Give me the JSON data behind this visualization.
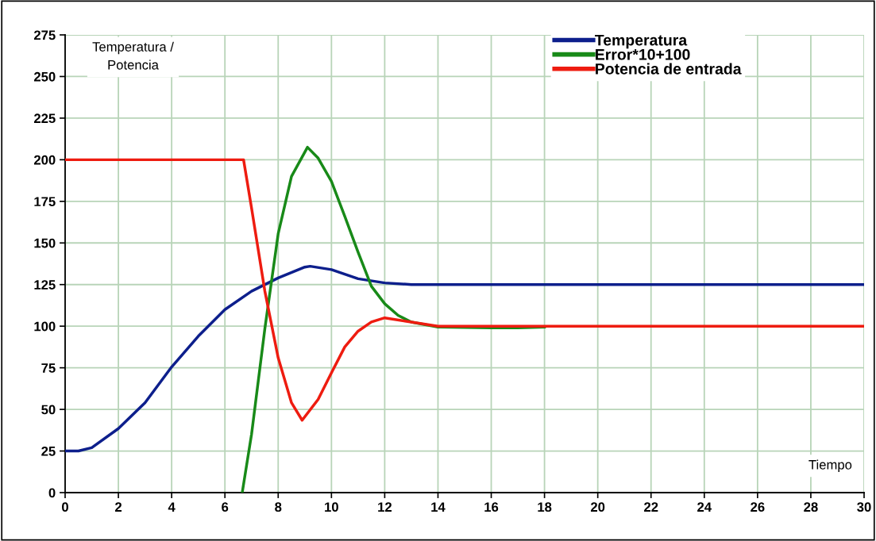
{
  "chart_data": {
    "type": "line",
    "xlabel": "Tiempo",
    "ylabel": "Temperatura /\nPotencia",
    "xlim": [
      0,
      30
    ],
    "ylim": [
      0,
      275
    ],
    "xticks": [
      0,
      2,
      4,
      6,
      8,
      10,
      12,
      14,
      16,
      18,
      20,
      22,
      24,
      26,
      28,
      30
    ],
    "yticks": [
      0,
      25,
      50,
      75,
      100,
      125,
      150,
      175,
      200,
      225,
      250,
      275
    ],
    "grid": true,
    "legend": "top right",
    "marker": "none",
    "line_style": "solid",
    "series": [
      {
        "name": "Temperatura",
        "color": "#0d1f8c",
        "x": [
          0,
          0.5,
          1,
          2,
          3,
          4,
          5,
          6,
          7,
          8,
          9,
          9.2,
          10,
          11,
          12,
          13,
          14,
          30
        ],
        "values": [
          25,
          25,
          27,
          38.5,
          54,
          75.5,
          94,
          110,
          121,
          129,
          135.5,
          136,
          134,
          128.5,
          126,
          125,
          125,
          125
        ]
      },
      {
        "name": "Error*10+100",
        "color": "#188a18",
        "x": [
          6.65,
          7,
          7.5,
          8,
          8.5,
          9.1,
          9.5,
          10,
          10.5,
          11,
          11.5,
          12,
          12.5,
          13,
          14,
          16,
          17,
          18
        ],
        "values": [
          0,
          35,
          98.5,
          155.5,
          190,
          207.5,
          201,
          187,
          166,
          144.5,
          124,
          113.5,
          106.5,
          102.5,
          99.5,
          99,
          99,
          99.5
        ]
      },
      {
        "name": "Potencia de entrada",
        "color": "#ee1c10",
        "x": [
          0,
          6.7,
          7,
          7.5,
          8,
          8.5,
          8.9,
          9.5,
          10,
          10.5,
          11,
          11.5,
          12,
          13,
          14,
          30
        ],
        "values": [
          200,
          200,
          171,
          121,
          81,
          54,
          43.5,
          56,
          72,
          87.5,
          97,
          102.5,
          105,
          102.5,
          100,
          100
        ]
      }
    ]
  }
}
